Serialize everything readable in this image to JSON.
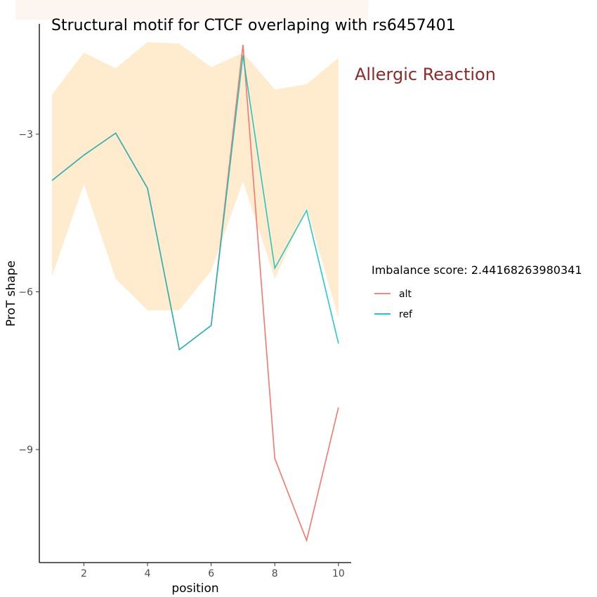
{
  "chart_data": {
    "type": "line",
    "title": "Structural motif for CTCF overlaping with rs6457401",
    "annotation": "Allergic Reaction",
    "xlabel": "position",
    "ylabel": "ProT shape",
    "xlim": [
      0.6,
      10.4
    ],
    "ylim": [
      -11.15,
      -1.25
    ],
    "x_ticks": [
      2,
      4,
      6,
      8,
      10
    ],
    "y_ticks": [
      -3,
      -6,
      -9
    ],
    "x": [
      1,
      2,
      3,
      4,
      5,
      6,
      7,
      8,
      9,
      10
    ],
    "ribbon": {
      "color": "#FFEBCD",
      "upper": [
        -2.25,
        -1.45,
        -1.75,
        -1.25,
        -1.28,
        -1.73,
        -1.45,
        -2.15,
        -2.05,
        -1.55
      ],
      "lower": [
        -5.7,
        -3.95,
        -5.75,
        -6.35,
        -6.35,
        -5.6,
        -3.9,
        -5.75,
        -4.4,
        -6.5
      ]
    },
    "series": [
      {
        "name": "alt",
        "color": "#F8766D",
        "values": [
          -3.88,
          -3.4,
          -2.98,
          -4.03,
          -7.1,
          -6.64,
          -1.3,
          -9.17,
          -10.73,
          -8.2
        ]
      },
      {
        "name": "ref",
        "color": "#00BFC4",
        "values": [
          -3.88,
          -3.4,
          -2.98,
          -4.03,
          -7.1,
          -6.64,
          -1.5,
          -5.55,
          -4.45,
          -6.98
        ]
      }
    ],
    "legend": {
      "title": "Imbalance score: 2.44168263980341",
      "placement": "right"
    },
    "grid": false
  }
}
